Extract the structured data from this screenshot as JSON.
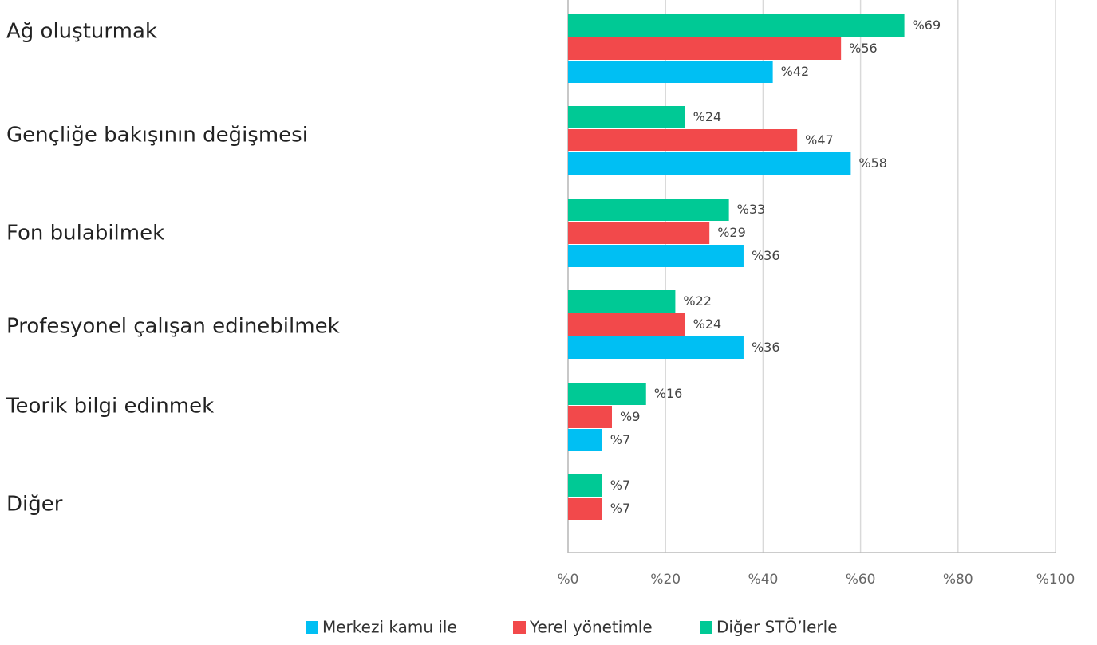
{
  "chart_data": {
    "type": "hbar",
    "categories": [
      "Ağ oluşturmak",
      "Gençliğe bakışının değişmesi",
      "Fon bulabilmek",
      "Profesyonel çalışan edinebilmek",
      "Teorik bilgi edinmek",
      "Diğer"
    ],
    "series": [
      {
        "name": "Merkezi kamu ile",
        "color": "#00bff3",
        "values": [
          42,
          58,
          36,
          36,
          7,
          null
        ],
        "value_labels": [
          "%42",
          "%58",
          "%36",
          "%36",
          "%7",
          null
        ]
      },
      {
        "name": "Yerel yönetimle",
        "color": "#f2494b",
        "values": [
          56,
          47,
          29,
          24,
          9,
          7
        ],
        "value_labels": [
          "%56",
          "%47",
          "%29",
          "%24",
          "%9",
          "%7"
        ]
      },
      {
        "name": "Diğer STÖ’lerle",
        "color": "#00c995",
        "values": [
          69,
          24,
          33,
          22,
          16,
          7
        ],
        "value_labels": [
          "%69",
          "%24",
          "%33",
          "%22",
          "%16",
          "%7"
        ]
      }
    ],
    "xlim": [
      0,
      100
    ],
    "xticks": [
      {
        "value": 0,
        "label": "%0"
      },
      {
        "value": 20,
        "label": "%20"
      },
      {
        "value": 40,
        "label": "%40"
      },
      {
        "value": 60,
        "label": "%60"
      },
      {
        "value": 80,
        "label": "%80"
      },
      {
        "value": 100,
        "label": "%100"
      }
    ],
    "grid": true,
    "legend": "bottom"
  }
}
